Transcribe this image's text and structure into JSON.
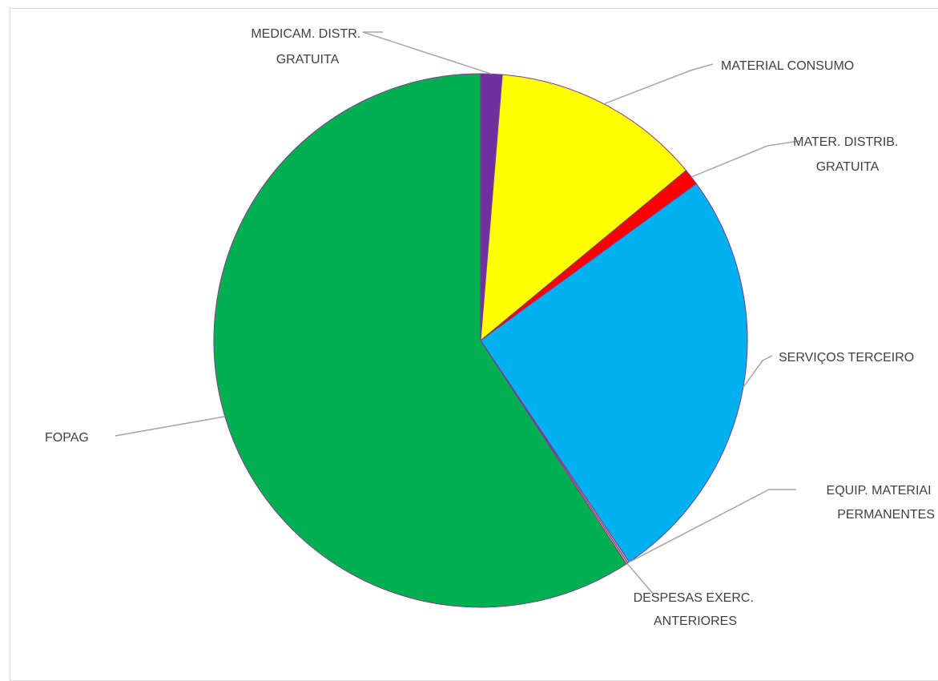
{
  "chart_data": {
    "type": "pie",
    "title": "",
    "start_angle_deg": 0,
    "direction": "clockwise",
    "slices": [
      {
        "label": "MEDICAM. DISTR. GRATUITA",
        "lines": [
          "MEDICAM. DISTR.",
          "GRATUITA"
        ],
        "value": 1.3,
        "color": "#7030A0"
      },
      {
        "label": "MATERIAL CONSUMO",
        "lines": [
          "MATERIAL CONSUMO"
        ],
        "value": 12.7,
        "color": "#FFFF00"
      },
      {
        "label": "MATER. DISTRIB. GRATUITA",
        "lines": [
          "MATER. DISTRIB.",
          "GRATUITA"
        ],
        "value": 1.0,
        "color": "#FF0000"
      },
      {
        "label": "SERVIÇOS TERCEIRO",
        "lines": [
          "SERVIÇOS TERCEIRO"
        ],
        "value": 25.6,
        "color": "#00B0F0"
      },
      {
        "label": "EQUIP. MATERIAI PERMANENTES",
        "lines": [
          "EQUIP. MATERIAI",
          "PERMANENTES"
        ],
        "value": 0.1,
        "color": "#C0C0C0"
      },
      {
        "label": "DESPESAS EXERC. ANTERIORES",
        "lines": [
          "DESPESAS EXERC.",
          "ANTERIORES"
        ],
        "value": 0.1,
        "color": "#F4B183"
      },
      {
        "label": "FOPAG",
        "lines": [
          "FOPAG"
        ],
        "value": 59.2,
        "color": "#00B050"
      }
    ],
    "legend": "none"
  }
}
